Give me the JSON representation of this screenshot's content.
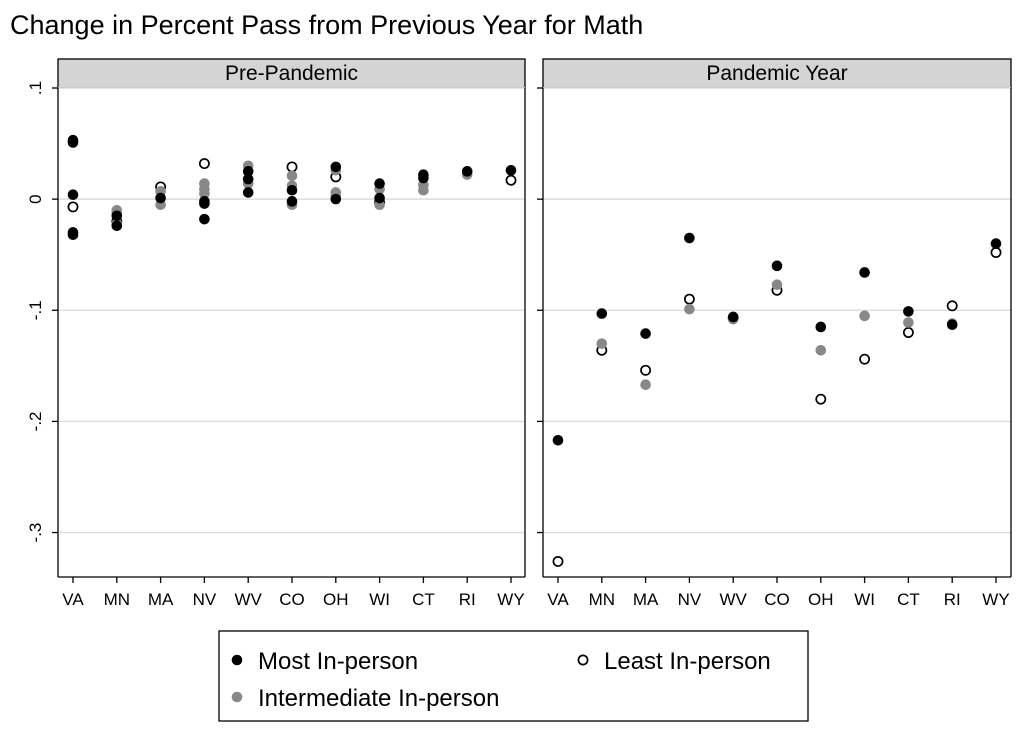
{
  "chart_data": {
    "type": "scatter",
    "title": "Change in Percent Pass from Previous Year for Math",
    "ylim": [
      -0.34,
      0.1
    ],
    "yticks": [
      {
        "value": 0.1,
        "label": ".1"
      },
      {
        "value": 0,
        "label": "0"
      },
      {
        "value": -0.1,
        "label": "-.1"
      },
      {
        "value": -0.2,
        "label": "-.2"
      },
      {
        "value": -0.3,
        "label": "-.3"
      }
    ],
    "grid": true,
    "categories": [
      "VA",
      "MN",
      "MA",
      "NV",
      "WV",
      "CO",
      "OH",
      "WI",
      "CT",
      "RI",
      "WY"
    ],
    "legend": {
      "placement": "bottom",
      "entries": [
        {
          "key": "most",
          "label": "Most In-person"
        },
        {
          "key": "least",
          "label": "Least In-person"
        },
        {
          "key": "intermediate",
          "label": "Intermediate In-person"
        }
      ]
    },
    "colors": {
      "most": "#000000",
      "intermediate": "#888888",
      "least_fill": "#ffffff",
      "least_stroke": "#000000"
    },
    "panels": [
      {
        "label": "Pre-Pandemic",
        "points": [
          {
            "x": "VA",
            "series": "most",
            "y": 0.053
          },
          {
            "x": "VA",
            "series": "most",
            "y": 0.051
          },
          {
            "x": "VA",
            "series": "most",
            "y": 0.004
          },
          {
            "x": "VA",
            "series": "most",
            "y": -0.03
          },
          {
            "x": "VA",
            "series": "most",
            "y": -0.032
          },
          {
            "x": "VA",
            "series": "least",
            "y": -0.007
          },
          {
            "x": "MN",
            "series": "most",
            "y": -0.015
          },
          {
            "x": "MN",
            "series": "most",
            "y": -0.024
          },
          {
            "x": "MN",
            "series": "least",
            "y": -0.02
          },
          {
            "x": "MN",
            "series": "intermediate",
            "y": -0.01
          },
          {
            "x": "MN",
            "series": "intermediate",
            "y": -0.013
          },
          {
            "x": "MN",
            "series": "intermediate",
            "y": -0.022
          },
          {
            "x": "MA",
            "series": "most",
            "y": 0.001
          },
          {
            "x": "MA",
            "series": "least",
            "y": 0.011
          },
          {
            "x": "MA",
            "series": "intermediate",
            "y": 0.007
          },
          {
            "x": "MA",
            "series": "intermediate",
            "y": -0.005
          },
          {
            "x": "NV",
            "series": "most",
            "y": -0.018
          },
          {
            "x": "NV",
            "series": "most",
            "y": -0.002
          },
          {
            "x": "NV",
            "series": "most",
            "y": -0.004
          },
          {
            "x": "NV",
            "series": "least",
            "y": 0.032
          },
          {
            "x": "NV",
            "series": "intermediate",
            "y": 0.014
          },
          {
            "x": "NV",
            "series": "intermediate",
            "y": 0.009
          },
          {
            "x": "NV",
            "series": "intermediate",
            "y": 0.005
          },
          {
            "x": "WV",
            "series": "most",
            "y": 0.025
          },
          {
            "x": "WV",
            "series": "most",
            "y": 0.018
          },
          {
            "x": "WV",
            "series": "most",
            "y": 0.006
          },
          {
            "x": "WV",
            "series": "intermediate",
            "y": 0.03
          },
          {
            "x": "WV",
            "series": "intermediate",
            "y": 0.014
          },
          {
            "x": "CO",
            "series": "most",
            "y": 0.008
          },
          {
            "x": "CO",
            "series": "most",
            "y": -0.002
          },
          {
            "x": "CO",
            "series": "least",
            "y": 0.029
          },
          {
            "x": "CO",
            "series": "intermediate",
            "y": 0.021
          },
          {
            "x": "CO",
            "series": "intermediate",
            "y": 0.012
          },
          {
            "x": "CO",
            "series": "intermediate",
            "y": -0.005
          },
          {
            "x": "OH",
            "series": "most",
            "y": 0.029
          },
          {
            "x": "OH",
            "series": "most",
            "y": 0.0
          },
          {
            "x": "OH",
            "series": "least",
            "y": 0.02
          },
          {
            "x": "OH",
            "series": "intermediate",
            "y": 0.026
          },
          {
            "x": "OH",
            "series": "intermediate",
            "y": 0.006
          },
          {
            "x": "OH",
            "series": "intermediate",
            "y": 0.003
          },
          {
            "x": "WI",
            "series": "most",
            "y": 0.014
          },
          {
            "x": "WI",
            "series": "most",
            "y": 0.001
          },
          {
            "x": "WI",
            "series": "least",
            "y": -0.003
          },
          {
            "x": "WI",
            "series": "intermediate",
            "y": 0.009
          },
          {
            "x": "WI",
            "series": "intermediate",
            "y": -0.005
          },
          {
            "x": "CT",
            "series": "most",
            "y": 0.022
          },
          {
            "x": "CT",
            "series": "most",
            "y": 0.019
          },
          {
            "x": "CT",
            "series": "intermediate",
            "y": 0.013
          },
          {
            "x": "CT",
            "series": "intermediate",
            "y": 0.008
          },
          {
            "x": "RI",
            "series": "most",
            "y": 0.025
          },
          {
            "x": "RI",
            "series": "intermediate",
            "y": 0.022
          },
          {
            "x": "WY",
            "series": "most",
            "y": 0.026
          },
          {
            "x": "WY",
            "series": "least",
            "y": 0.017
          }
        ]
      },
      {
        "label": "Pandemic Year",
        "points": [
          {
            "x": "VA",
            "series": "most",
            "y": -0.217
          },
          {
            "x": "VA",
            "series": "least",
            "y": -0.326
          },
          {
            "x": "MN",
            "series": "most",
            "y": -0.103
          },
          {
            "x": "MN",
            "series": "intermediate",
            "y": -0.13
          },
          {
            "x": "MN",
            "series": "least",
            "y": -0.136
          },
          {
            "x": "MA",
            "series": "most",
            "y": -0.121
          },
          {
            "x": "MA",
            "series": "least",
            "y": -0.154
          },
          {
            "x": "MA",
            "series": "intermediate",
            "y": -0.167
          },
          {
            "x": "NV",
            "series": "most",
            "y": -0.035
          },
          {
            "x": "NV",
            "series": "least",
            "y": -0.09
          },
          {
            "x": "NV",
            "series": "intermediate",
            "y": -0.099
          },
          {
            "x": "WV",
            "series": "most",
            "y": -0.106
          },
          {
            "x": "WV",
            "series": "least",
            "y": -0.107
          },
          {
            "x": "WV",
            "series": "intermediate",
            "y": -0.108
          },
          {
            "x": "CO",
            "series": "most",
            "y": -0.06
          },
          {
            "x": "CO",
            "series": "least",
            "y": -0.082
          },
          {
            "x": "CO",
            "series": "intermediate",
            "y": -0.077
          },
          {
            "x": "OH",
            "series": "most",
            "y": -0.115
          },
          {
            "x": "OH",
            "series": "intermediate",
            "y": -0.136
          },
          {
            "x": "OH",
            "series": "least",
            "y": -0.18
          },
          {
            "x": "WI",
            "series": "most",
            "y": -0.066
          },
          {
            "x": "WI",
            "series": "intermediate",
            "y": -0.105
          },
          {
            "x": "WI",
            "series": "least",
            "y": -0.144
          },
          {
            "x": "CT",
            "series": "most",
            "y": -0.101
          },
          {
            "x": "CT",
            "series": "intermediate",
            "y": -0.111
          },
          {
            "x": "CT",
            "series": "least",
            "y": -0.12
          },
          {
            "x": "RI",
            "series": "least",
            "y": -0.096
          },
          {
            "x": "RI",
            "series": "most",
            "y": -0.113
          },
          {
            "x": "RI",
            "series": "intermediate",
            "y": -0.112
          },
          {
            "x": "WY",
            "series": "most",
            "y": -0.04
          },
          {
            "x": "WY",
            "series": "least",
            "y": -0.048
          }
        ]
      }
    ]
  }
}
